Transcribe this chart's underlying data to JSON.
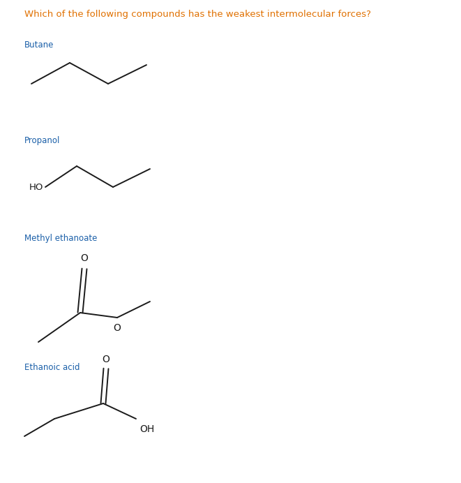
{
  "title": "Which of the following compounds has the weakest intermolecular forces?",
  "title_color": "#e07000",
  "title_fontsize": 9.5,
  "bg_color": "#ffffff",
  "label_color": "#1a5fa8",
  "label_fontsize": 8.5,
  "structure_color": "#1a1a1a",
  "lw": 1.4,
  "compounds": [
    "Butane",
    "Propanol",
    "Methyl ethanoate",
    "Ethanoic acid"
  ],
  "figsize": [
    6.61,
    6.92
  ],
  "dpi": 100
}
